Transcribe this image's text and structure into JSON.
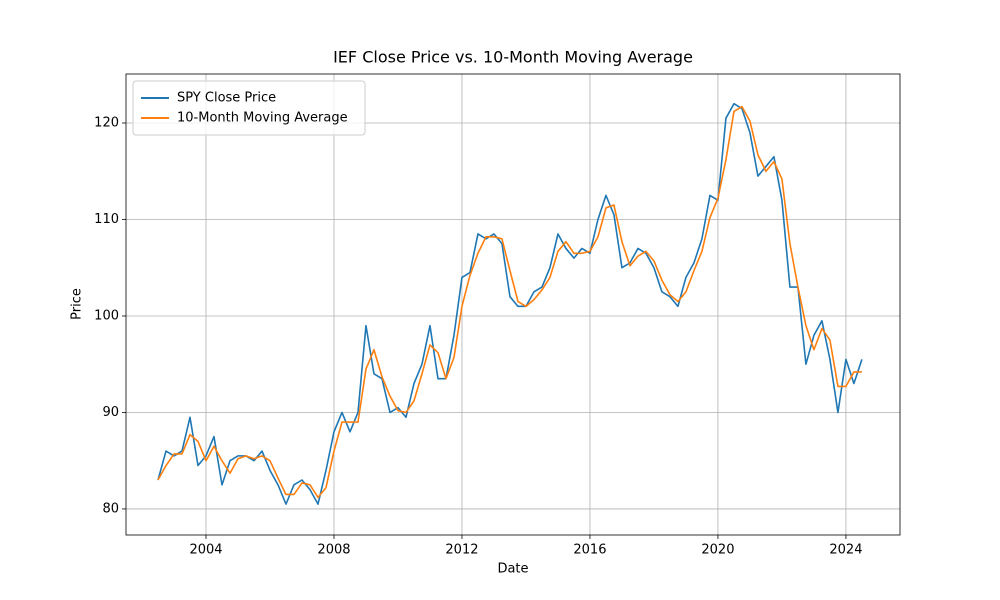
{
  "chart_data": {
    "type": "line",
    "title": "IEF Close Price vs. 10-Month Moving Average",
    "x_label": "Date",
    "y_label": "Price",
    "x": [
      2002.5,
      2002.75,
      2003,
      2003.25,
      2003.5,
      2003.75,
      2004,
      2004.25,
      2004.5,
      2004.75,
      2005,
      2005.25,
      2005.5,
      2005.75,
      2006,
      2006.25,
      2006.5,
      2006.75,
      2007,
      2007.25,
      2007.5,
      2007.75,
      2008,
      2008.25,
      2008.5,
      2008.75,
      2009,
      2009.25,
      2009.5,
      2009.75,
      2010,
      2010.25,
      2010.5,
      2010.75,
      2011,
      2011.25,
      2011.5,
      2011.75,
      2012,
      2012.25,
      2012.5,
      2012.75,
      2013,
      2013.25,
      2013.5,
      2013.75,
      2014,
      2014.25,
      2014.5,
      2014.75,
      2015,
      2015.25,
      2015.5,
      2015.75,
      2016,
      2016.25,
      2016.5,
      2016.75,
      2017,
      2017.25,
      2017.5,
      2017.75,
      2018,
      2018.25,
      2018.5,
      2018.75,
      2019,
      2019.25,
      2019.5,
      2019.75,
      2020,
      2020.25,
      2020.5,
      2020.75,
      2021,
      2021.25,
      2021.5,
      2021.75,
      2022,
      2022.25,
      2022.5,
      2022.75,
      2023,
      2023.25,
      2023.5,
      2023.75,
      2024,
      2024.25,
      2024.5
    ],
    "series": [
      {
        "name": "SPY Close Price",
        "color": "#1f77b4",
        "values": [
          83,
          86,
          85.5,
          86,
          89.5,
          84.5,
          85.5,
          87.5,
          82.5,
          85,
          85.5,
          85.5,
          85,
          86,
          84,
          82.5,
          80.5,
          82.5,
          83,
          82,
          80.5,
          84,
          88,
          90,
          88,
          90,
          99,
          94,
          93.5,
          90,
          90.5,
          89.5,
          93,
          95,
          99,
          93.5,
          93.5,
          98,
          104,
          104.5,
          108.5,
          108,
          108.5,
          107.5,
          102,
          101,
          101,
          102.5,
          103,
          105,
          108.5,
          107,
          106,
          107,
          106.5,
          110,
          112.5,
          110.5,
          105,
          105.5,
          107,
          106.5,
          105,
          102.5,
          102,
          101,
          104,
          105.5,
          108,
          112.5,
          112,
          120.5,
          122,
          121.5,
          119,
          114.5,
          115.5,
          116.5,
          112,
          103,
          103,
          95,
          98,
          99.5,
          95.5,
          90,
          95.5,
          93,
          95.5
        ]
      },
      {
        "name": "10-Month Moving Average",
        "color": "#ff7f0e",
        "values": [
          83,
          84.5,
          85.7,
          85.7,
          87.7,
          87,
          85,
          86.5,
          85,
          83.7,
          85.2,
          85.5,
          85.2,
          85.5,
          85,
          83.2,
          81.5,
          81.5,
          82.7,
          82.5,
          81.2,
          82.2,
          86,
          89,
          89,
          89,
          94.5,
          96.5,
          93.7,
          91.7,
          90.2,
          90,
          91.2,
          94,
          97,
          96.2,
          93.5,
          95.7,
          101,
          104.2,
          106.5,
          108.2,
          108.2,
          108,
          104.7,
          101.5,
          101,
          101.7,
          102.7,
          104,
          106.7,
          107.7,
          106.5,
          106.5,
          106.7,
          108.2,
          111.2,
          111.5,
          107.7,
          105.2,
          106.2,
          106.7,
          105.7,
          103.7,
          102.2,
          101.5,
          102.5,
          104.7,
          106.7,
          110.2,
          112.2,
          116.2,
          121.2,
          121.7,
          120.2,
          116.7,
          115,
          116,
          114.2,
          107.5,
          103,
          99,
          96.5,
          98.7,
          97.5,
          92.7,
          92.7,
          94.2,
          94.2
        ]
      }
    ],
    "xlim": [
      2001.5,
      2025.69
    ],
    "xticks": [
      2004,
      2008,
      2012,
      2016,
      2020,
      2024
    ],
    "ylim": [
      77.3,
      125.08
    ],
    "yticks": [
      80,
      90,
      100,
      110,
      120
    ],
    "grid": true,
    "legend": "upper left"
  }
}
